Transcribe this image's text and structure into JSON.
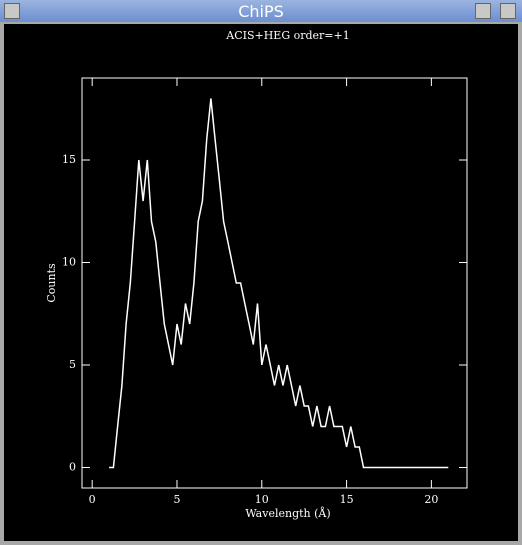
{
  "window": {
    "title": "ChiPS"
  },
  "chart_data": {
    "type": "line",
    "title": "ACIS+HEG order=+1",
    "x_label": "Wavelength (Å)",
    "y_label": "Counts",
    "x": [
      1.0,
      1.25,
      1.5,
      1.75,
      2.0,
      2.25,
      2.5,
      2.75,
      3.0,
      3.25,
      3.5,
      3.75,
      4.0,
      4.25,
      4.5,
      4.75,
      5.0,
      5.25,
      5.5,
      5.75,
      6.0,
      6.25,
      6.5,
      6.75,
      7.0,
      7.25,
      7.5,
      7.75,
      8.0,
      8.25,
      8.5,
      8.75,
      9.0,
      9.25,
      9.5,
      9.75,
      10.0,
      10.25,
      10.5,
      10.75,
      11.0,
      11.25,
      11.5,
      11.75,
      12.0,
      12.25,
      12.5,
      12.75,
      13.0,
      13.25,
      13.5,
      13.75,
      14.0,
      14.25,
      14.5,
      14.75,
      15.0,
      15.25,
      15.5,
      15.75,
      16.0,
      16.25,
      16.5,
      16.75,
      17.0,
      17.25,
      17.5,
      17.75,
      18.0,
      18.25,
      18.5,
      18.75,
      19.0,
      19.25,
      19.5,
      19.75,
      20.0,
      20.25,
      20.5,
      20.75,
      21.0
    ],
    "values": [
      0,
      0,
      2,
      4,
      7,
      9,
      12,
      15,
      13,
      15,
      12,
      11,
      9,
      7,
      6,
      5,
      7,
      6,
      8,
      7,
      9,
      12,
      13,
      16,
      18,
      16,
      14,
      12,
      11,
      10,
      9,
      9,
      8,
      7,
      6,
      8,
      5,
      6,
      5,
      4,
      5,
      4,
      5,
      4,
      3,
      4,
      3,
      3,
      2,
      3,
      2,
      2,
      3,
      2,
      2,
      2,
      1,
      2,
      1,
      1,
      0,
      0,
      0,
      0,
      0,
      0,
      0,
      0,
      0,
      0,
      0,
      0,
      0,
      0,
      0,
      0,
      0,
      0,
      0,
      0,
      0
    ],
    "color": "#ffffff",
    "xlim": [
      -0.6,
      22.1
    ],
    "ylim": [
      -1,
      19
    ],
    "xticks": [
      0,
      5,
      10,
      15,
      20
    ],
    "yticks": [
      0,
      5,
      10,
      15
    ]
  }
}
